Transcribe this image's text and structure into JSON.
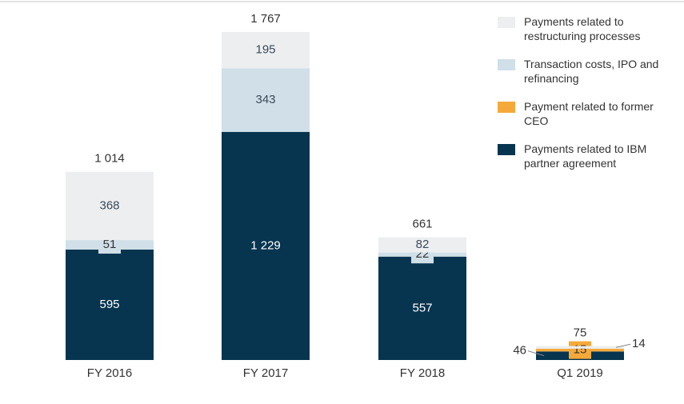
{
  "chart_data": {
    "type": "stacked_bar",
    "categories": [
      "FY 2016",
      "FY 2017",
      "FY 2018",
      "Q1 2019"
    ],
    "series": [
      {
        "name": "Payments related to IBM partner agreement",
        "color": "#073550",
        "values": [
          595,
          1229,
          557,
          46
        ],
        "value_labels": [
          "595",
          "1 229",
          "557",
          "46"
        ]
      },
      {
        "name": "Payment related to former CEO",
        "color": "#f5a93a",
        "values": [
          null,
          null,
          null,
          15
        ],
        "value_labels": [
          null,
          null,
          null,
          "15"
        ]
      },
      {
        "name": "Transaction costs, IPO and refinancing",
        "color": "#d0dfe8",
        "values": [
          51,
          343,
          22,
          null
        ],
        "value_labels": [
          "51",
          "343",
          "22",
          null
        ]
      },
      {
        "name": "Payments related to restructuring processes",
        "color": "#eceef0",
        "values": [
          368,
          195,
          82,
          14
        ],
        "value_labels": [
          "368",
          "195",
          "82",
          "14"
        ]
      }
    ],
    "totals": {
      "values": [
        1014,
        1767,
        661,
        75
      ],
      "value_labels": [
        "1 014",
        "1 767",
        "661",
        "75"
      ]
    }
  }
}
